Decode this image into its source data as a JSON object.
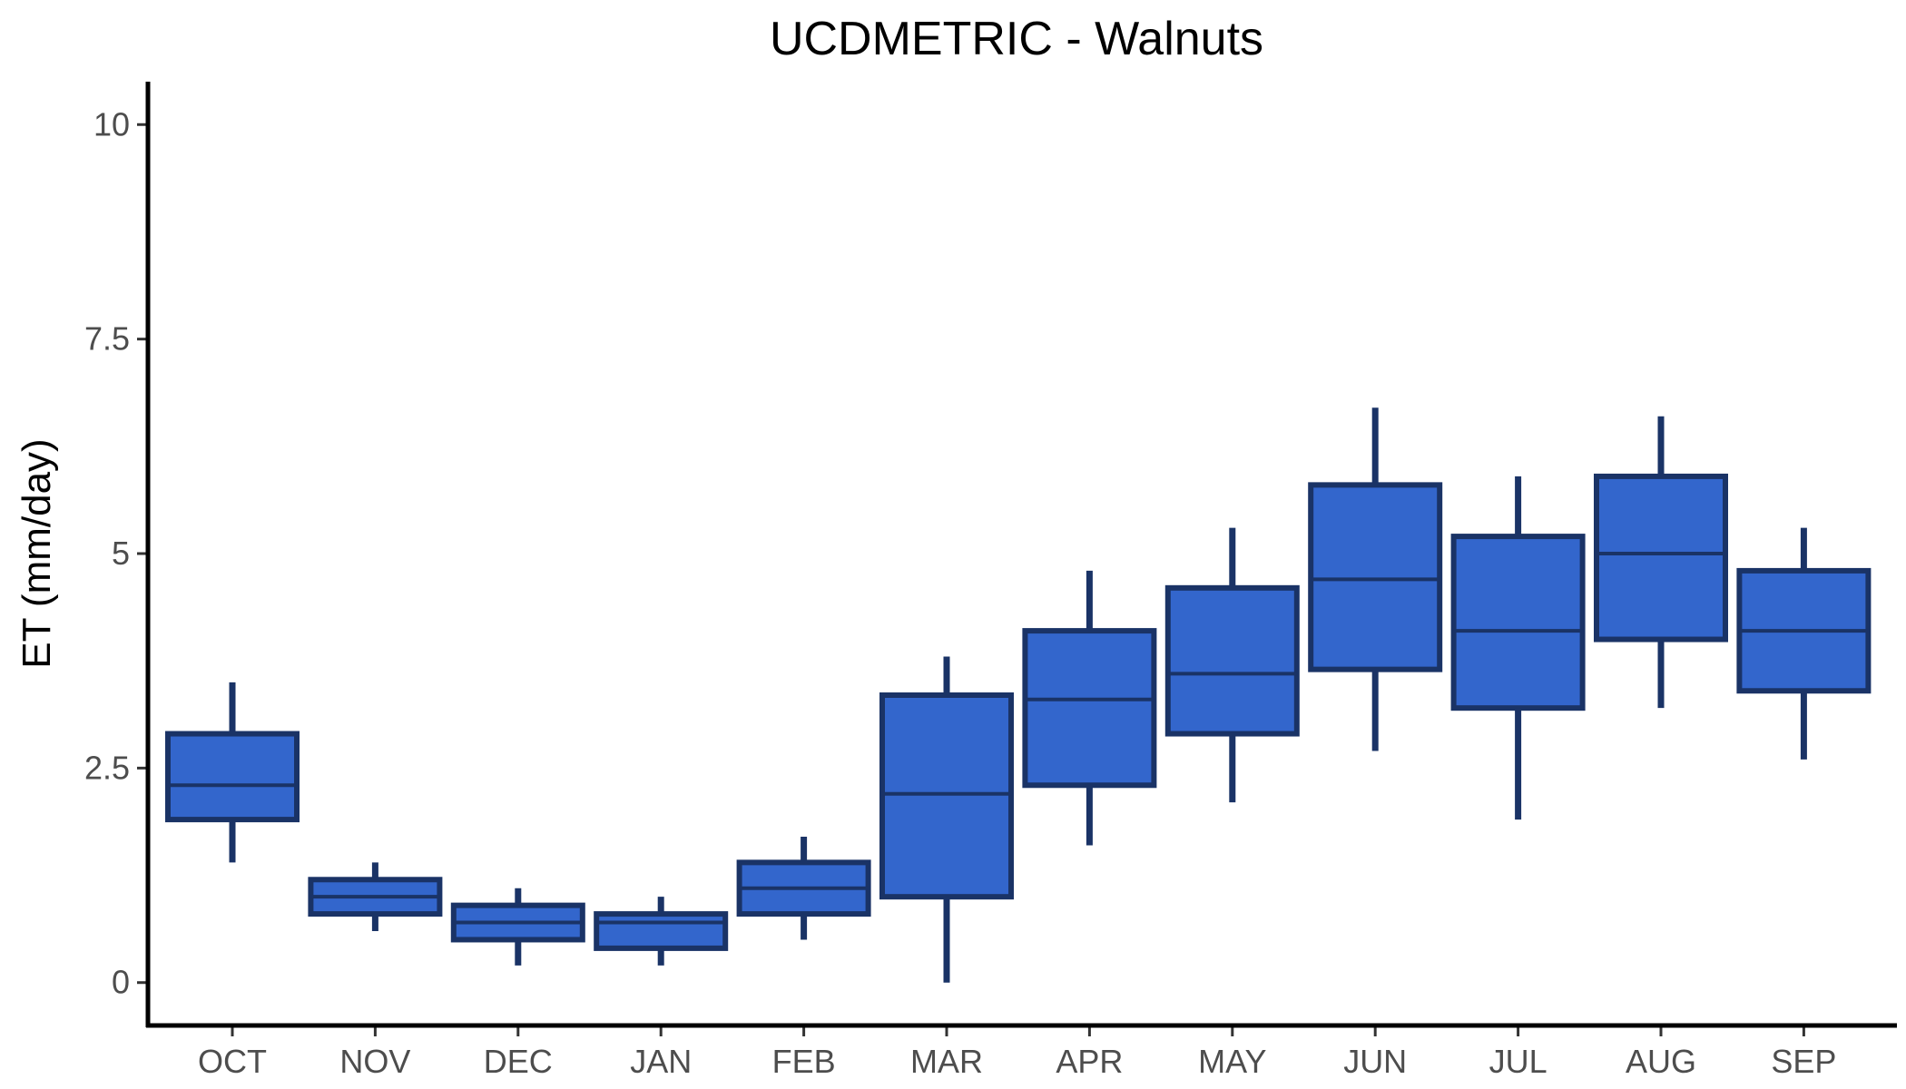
{
  "chart_data": {
    "type": "boxplot",
    "title": "UCDMETRIC - Walnuts",
    "xlabel": "",
    "ylabel": "ET (mm/day)",
    "ylim": [
      -0.5,
      10.5
    ],
    "y_ticks": [
      0,
      2.5,
      5,
      7.5,
      10
    ],
    "y_tick_labels": [
      "0",
      "2.5",
      "5",
      "7.5",
      "10"
    ],
    "grid": false,
    "legend": "none",
    "categories": [
      "OCT",
      "NOV",
      "DEC",
      "JAN",
      "FEB",
      "MAR",
      "APR",
      "MAY",
      "JUN",
      "JUL",
      "AUG",
      "SEP"
    ],
    "boxes": [
      {
        "category": "OCT",
        "whisker_low": 1.4,
        "q1": 1.9,
        "median": 2.3,
        "q3": 2.9,
        "whisker_high": 3.5
      },
      {
        "category": "NOV",
        "whisker_low": 0.6,
        "q1": 0.8,
        "median": 1.0,
        "q3": 1.2,
        "whisker_high": 1.4
      },
      {
        "category": "DEC",
        "whisker_low": 0.2,
        "q1": 0.5,
        "median": 0.7,
        "q3": 0.9,
        "whisker_high": 1.1
      },
      {
        "category": "JAN",
        "whisker_low": 0.2,
        "q1": 0.4,
        "median": 0.7,
        "q3": 0.8,
        "whisker_high": 1.0
      },
      {
        "category": "FEB",
        "whisker_low": 0.5,
        "q1": 0.8,
        "median": 1.1,
        "q3": 1.4,
        "whisker_high": 1.7
      },
      {
        "category": "MAR",
        "whisker_low": 0.0,
        "q1": 1.0,
        "median": 2.2,
        "q3": 3.35,
        "whisker_high": 3.8
      },
      {
        "category": "APR",
        "whisker_low": 1.6,
        "q1": 2.3,
        "median": 3.3,
        "q3": 4.1,
        "whisker_high": 4.8
      },
      {
        "category": "MAY",
        "whisker_low": 2.1,
        "q1": 2.9,
        "median": 3.6,
        "q3": 4.6,
        "whisker_high": 5.3
      },
      {
        "category": "JUN",
        "whisker_low": 2.7,
        "q1": 3.65,
        "median": 4.7,
        "q3": 5.8,
        "whisker_high": 6.7
      },
      {
        "category": "JUL",
        "whisker_low": 1.9,
        "q1": 3.2,
        "median": 4.1,
        "q3": 5.2,
        "whisker_high": 5.9
      },
      {
        "category": "AUG",
        "whisker_low": 3.2,
        "q1": 4.0,
        "median": 5.0,
        "q3": 5.9,
        "whisker_high": 6.6
      },
      {
        "category": "SEP",
        "whisker_low": 2.6,
        "q1": 3.4,
        "median": 4.1,
        "q3": 4.8,
        "whisker_high": 5.3
      }
    ],
    "colors": {
      "box_fill": "#3366cc",
      "box_stroke": "#1a3366",
      "axis": "#000000",
      "tick_text": "#4d4d4d"
    }
  }
}
